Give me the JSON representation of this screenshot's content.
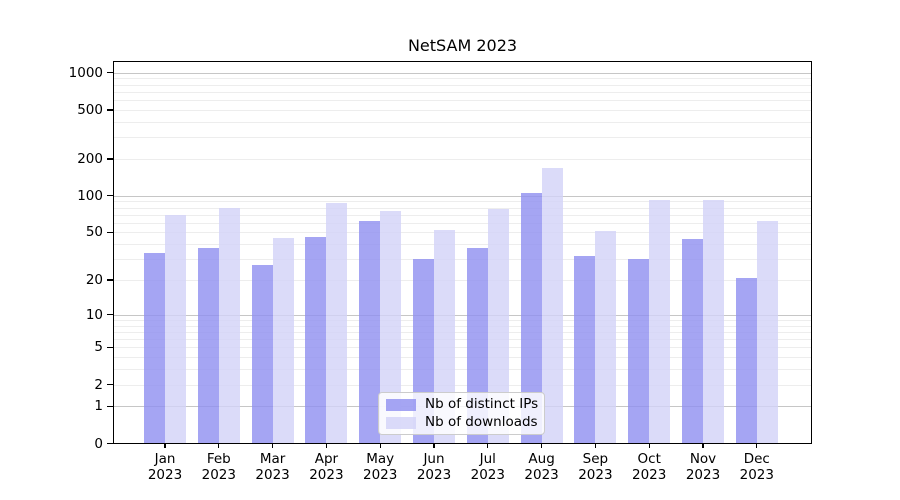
{
  "title": "NetSAM 2023",
  "chart_data": {
    "type": "bar",
    "title": "NetSAM 2023",
    "categories": [
      "Jan",
      "Feb",
      "Mar",
      "Apr",
      "May",
      "Jun",
      "Jul",
      "Aug",
      "Sep",
      "Oct",
      "Nov",
      "Dec"
    ],
    "year_label": "2023",
    "series": [
      {
        "name": "Nb of distinct IPs",
        "color": "#8e8ef0",
        "values": [
          34,
          37,
          27,
          46,
          62,
          30,
          37,
          105,
          32,
          30,
          44,
          21
        ]
      },
      {
        "name": "Nb of downloads",
        "color": "#d2d2f7",
        "values": [
          70,
          80,
          45,
          88,
          75,
          52,
          78,
          170,
          51,
          93,
          92,
          62
        ]
      }
    ],
    "xlabel": "",
    "ylabel": "",
    "yscale": "symlog-log1p",
    "y_ticks": [
      1000,
      500,
      200,
      100,
      50,
      20,
      10,
      5,
      2,
      1,
      0
    ],
    "ylim": [
      0,
      1250
    ],
    "grid": true,
    "legend_position": "bottom-center",
    "colors": {
      "major_grid": "#c6c6c6",
      "minor_grid": "#ededed",
      "axis": "#000000",
      "background": "#ffffff"
    }
  }
}
